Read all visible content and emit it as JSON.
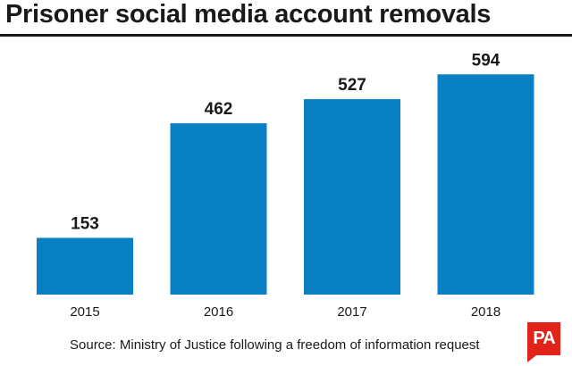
{
  "title": "Prisoner social media account removals",
  "source": "Source: Ministry of Justice following a freedom of information request",
  "logo_text": "PA",
  "colors": {
    "bar": "#0a80c4",
    "text": "#1a1a1a",
    "logo": "#e2231a"
  },
  "chart_data": {
    "type": "bar",
    "title": "Prisoner social media account removals",
    "categories": [
      "2015",
      "2016",
      "2017",
      "2018"
    ],
    "values": [
      153,
      462,
      527,
      594
    ],
    "ylim": [
      0,
      650
    ],
    "grid": false,
    "legend": "none",
    "data_labels": true
  }
}
